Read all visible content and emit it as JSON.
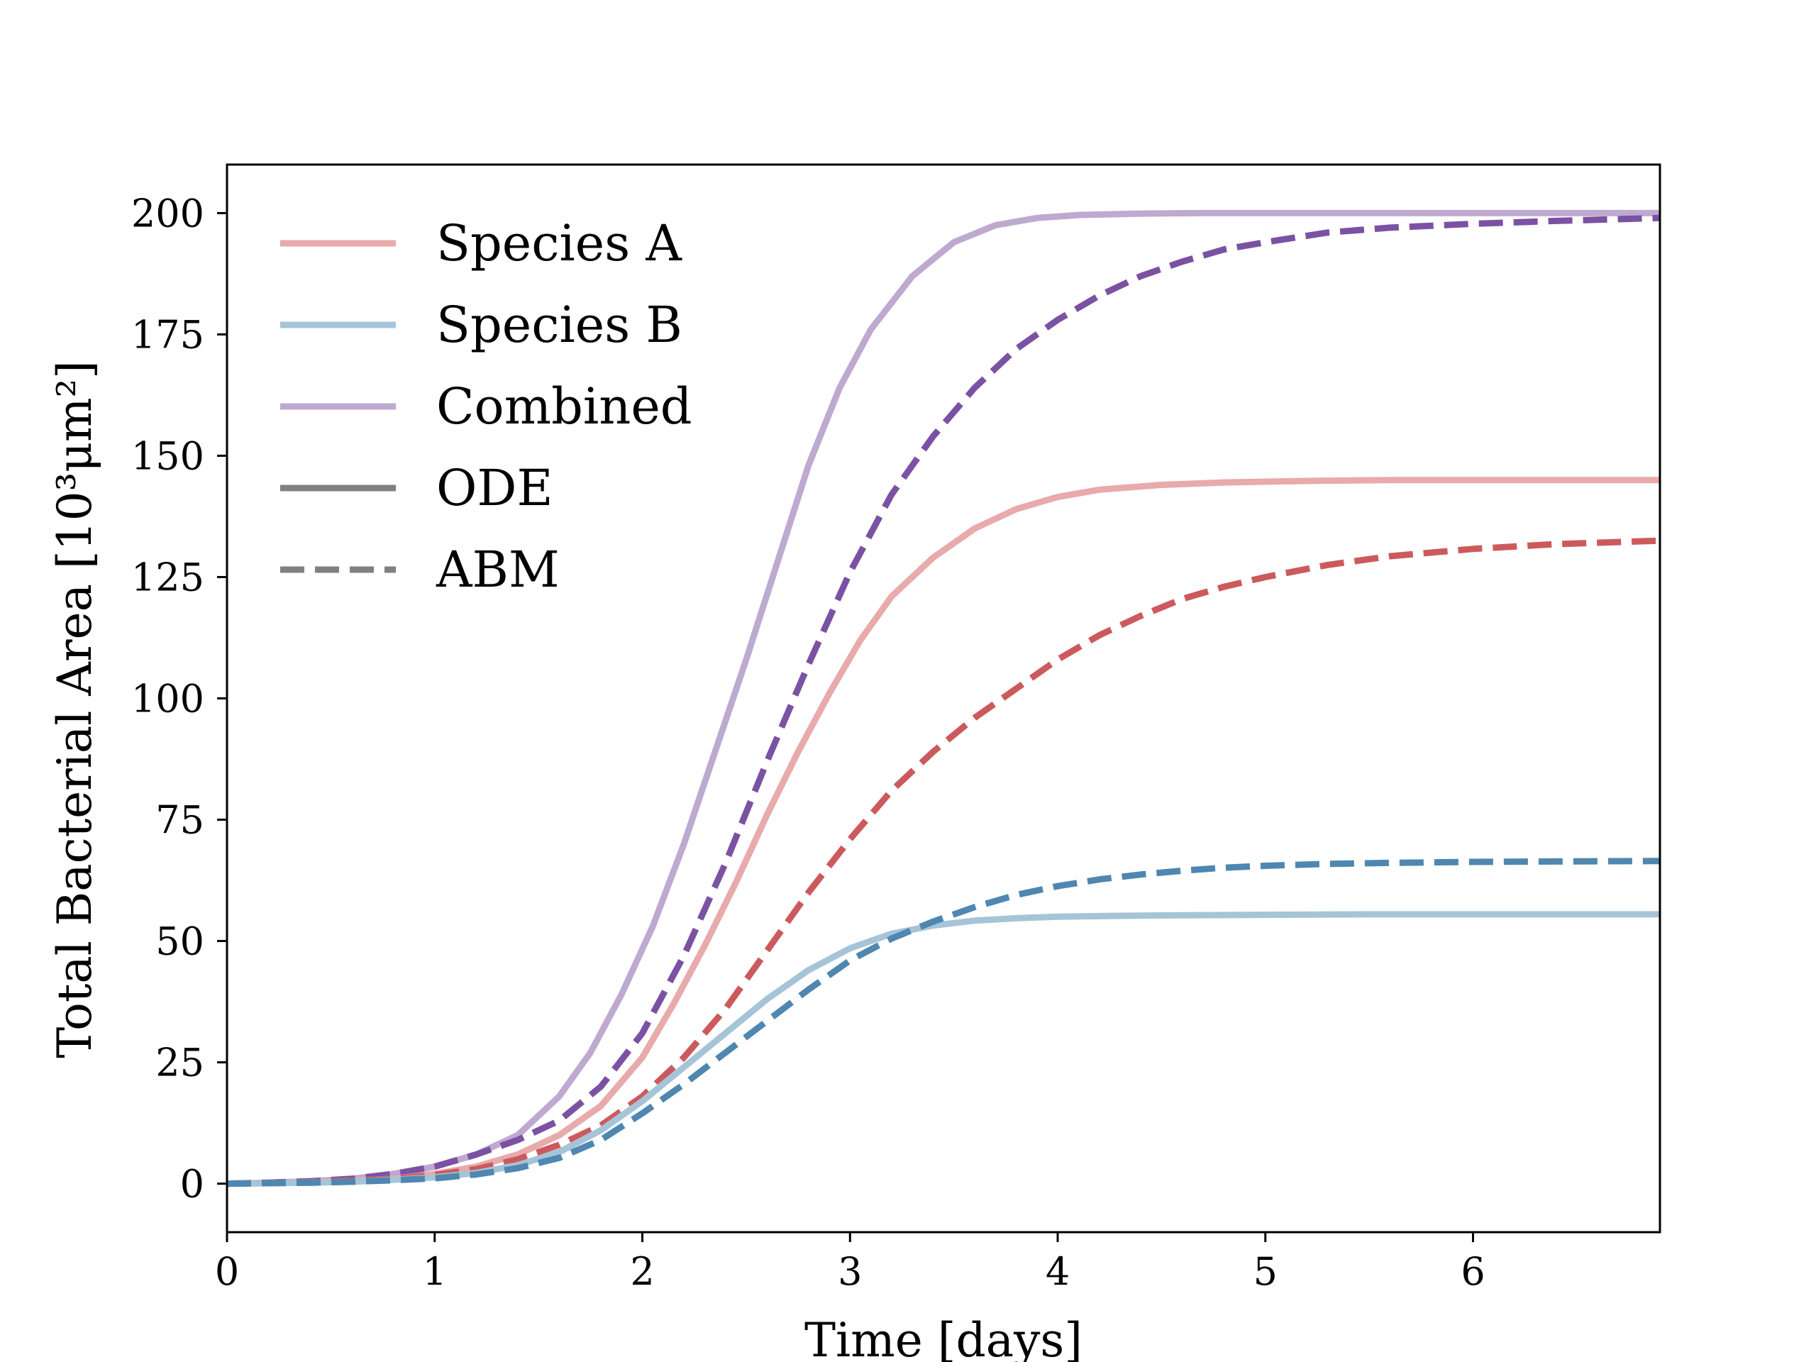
{
  "chart_data": {
    "type": "line",
    "title": "",
    "xlabel": "Time [days]",
    "ylabel": "Total Bacterial Area [10³μm²]",
    "xlim": [
      0,
      6.9
    ],
    "ylim": [
      -10,
      210
    ],
    "xticks": [
      0,
      1,
      2,
      3,
      4,
      5,
      6
    ],
    "yticks": [
      0,
      25,
      50,
      75,
      100,
      125,
      150,
      175,
      200
    ],
    "grid": false,
    "legend_position": "top-left",
    "legend": [
      {
        "label": "Species A",
        "color": "#e8aaab",
        "style": "solid"
      },
      {
        "label": "Species B",
        "color": "#a6c4d8",
        "style": "solid"
      },
      {
        "label": "Combined",
        "color": "#bea9d0",
        "style": "solid"
      },
      {
        "label": "ODE",
        "color": "#808080",
        "style": "solid"
      },
      {
        "label": "ABM",
        "color": "#808080",
        "style": "dashed"
      }
    ],
    "series": [
      {
        "group": "Combined",
        "model": "ODE",
        "color": "#bea9d0",
        "style": "solid",
        "x": [
          0,
          0.2,
          0.4,
          0.6,
          0.8,
          1.0,
          1.2,
          1.4,
          1.6,
          1.75,
          1.9,
          2.05,
          2.2,
          2.35,
          2.5,
          2.65,
          2.8,
          2.95,
          3.1,
          3.3,
          3.5,
          3.7,
          3.9,
          4.1,
          4.4,
          4.7,
          5.0,
          5.5,
          6.0,
          6.9
        ],
        "y": [
          0,
          0.2,
          0.5,
          1,
          2,
          3.5,
          6,
          10,
          18,
          27,
          39,
          53,
          70,
          89,
          108,
          128,
          148,
          164,
          176,
          187,
          194,
          197.5,
          199,
          199.6,
          199.9,
          200,
          200,
          200,
          200,
          200
        ]
      },
      {
        "group": "Combined",
        "model": "ABM",
        "color": "#7b52a3",
        "style": "dashed",
        "x": [
          0,
          0.2,
          0.4,
          0.6,
          0.8,
          1.0,
          1.2,
          1.4,
          1.6,
          1.8,
          2.0,
          2.2,
          2.4,
          2.6,
          2.8,
          3.0,
          3.2,
          3.4,
          3.6,
          3.8,
          4.0,
          4.2,
          4.4,
          4.6,
          4.8,
          5.0,
          5.3,
          5.6,
          6.0,
          6.4,
          6.9
        ],
        "y": [
          0,
          0.2,
          0.5,
          1,
          2,
          3.5,
          6,
          9,
          13,
          20,
          31,
          47,
          66,
          87,
          107,
          126,
          142,
          154,
          164,
          172,
          178,
          183,
          187,
          190,
          192.5,
          194,
          196,
          197,
          197.8,
          198.4,
          199
        ]
      },
      {
        "group": "Species A",
        "model": "ODE",
        "color": "#e8aaab",
        "style": "solid",
        "x": [
          0,
          0.2,
          0.4,
          0.6,
          0.8,
          1.0,
          1.2,
          1.4,
          1.6,
          1.8,
          2.0,
          2.15,
          2.3,
          2.45,
          2.6,
          2.75,
          2.9,
          3.05,
          3.2,
          3.4,
          3.6,
          3.8,
          4.0,
          4.2,
          4.5,
          4.8,
          5.2,
          5.6,
          6.0,
          6.9
        ],
        "y": [
          0,
          0.1,
          0.3,
          0.6,
          1,
          2,
          3.5,
          6,
          10,
          16,
          26,
          37,
          49,
          62,
          76,
          89,
          101,
          112,
          121,
          129,
          135,
          139,
          141.5,
          143,
          144,
          144.5,
          144.8,
          145,
          145,
          145
        ]
      },
      {
        "group": "Species A",
        "model": "ABM",
        "color": "#cc5a5d",
        "style": "dashed",
        "x": [
          0,
          0.2,
          0.4,
          0.6,
          0.8,
          1.0,
          1.2,
          1.4,
          1.6,
          1.8,
          2.0,
          2.2,
          2.4,
          2.6,
          2.8,
          3.0,
          3.2,
          3.4,
          3.6,
          3.8,
          4.0,
          4.2,
          4.4,
          4.6,
          4.8,
          5.0,
          5.3,
          5.6,
          6.0,
          6.4,
          6.9
        ],
        "y": [
          0,
          0.1,
          0.3,
          0.6,
          1,
          1.8,
          3,
          5,
          8,
          12,
          18,
          26,
          36,
          48,
          60,
          71,
          81,
          89,
          96,
          102,
          108,
          113,
          117,
          120.5,
          123,
          125,
          127.5,
          129.3,
          130.8,
          131.8,
          132.5
        ]
      },
      {
        "group": "Species B",
        "model": "ODE",
        "color": "#a6c4d8",
        "style": "solid",
        "x": [
          0,
          0.2,
          0.4,
          0.6,
          0.8,
          1.0,
          1.2,
          1.4,
          1.6,
          1.8,
          2.0,
          2.2,
          2.4,
          2.6,
          2.8,
          3.0,
          3.2,
          3.4,
          3.6,
          3.8,
          4.0,
          4.3,
          4.6,
          5.0,
          5.5,
          6.0,
          6.9
        ],
        "y": [
          0,
          0.1,
          0.2,
          0.4,
          0.8,
          1.3,
          2.2,
          3.8,
          6.5,
          11,
          17,
          24,
          31,
          38,
          44,
          48.5,
          51.5,
          53.2,
          54.2,
          54.7,
          55,
          55.2,
          55.3,
          55.4,
          55.5,
          55.5,
          55.5
        ]
      },
      {
        "group": "Species B",
        "model": "ABM",
        "color": "#4f87b0",
        "style": "dashed",
        "x": [
          0,
          0.2,
          0.4,
          0.6,
          0.8,
          1.0,
          1.2,
          1.4,
          1.6,
          1.8,
          2.0,
          2.2,
          2.4,
          2.6,
          2.8,
          3.0,
          3.2,
          3.4,
          3.6,
          3.8,
          4.0,
          4.2,
          4.4,
          4.6,
          4.8,
          5.0,
          5.3,
          5.6,
          6.0,
          6.4,
          6.9
        ],
        "y": [
          0,
          0.1,
          0.2,
          0.4,
          0.7,
          1.1,
          1.9,
          3.2,
          5.3,
          9,
          14.5,
          20.5,
          27,
          33.5,
          40,
          46,
          50.5,
          54,
          57,
          59.5,
          61.3,
          62.7,
          63.7,
          64.5,
          65.1,
          65.5,
          65.9,
          66.1,
          66.3,
          66.4,
          66.5
        ]
      }
    ]
  }
}
